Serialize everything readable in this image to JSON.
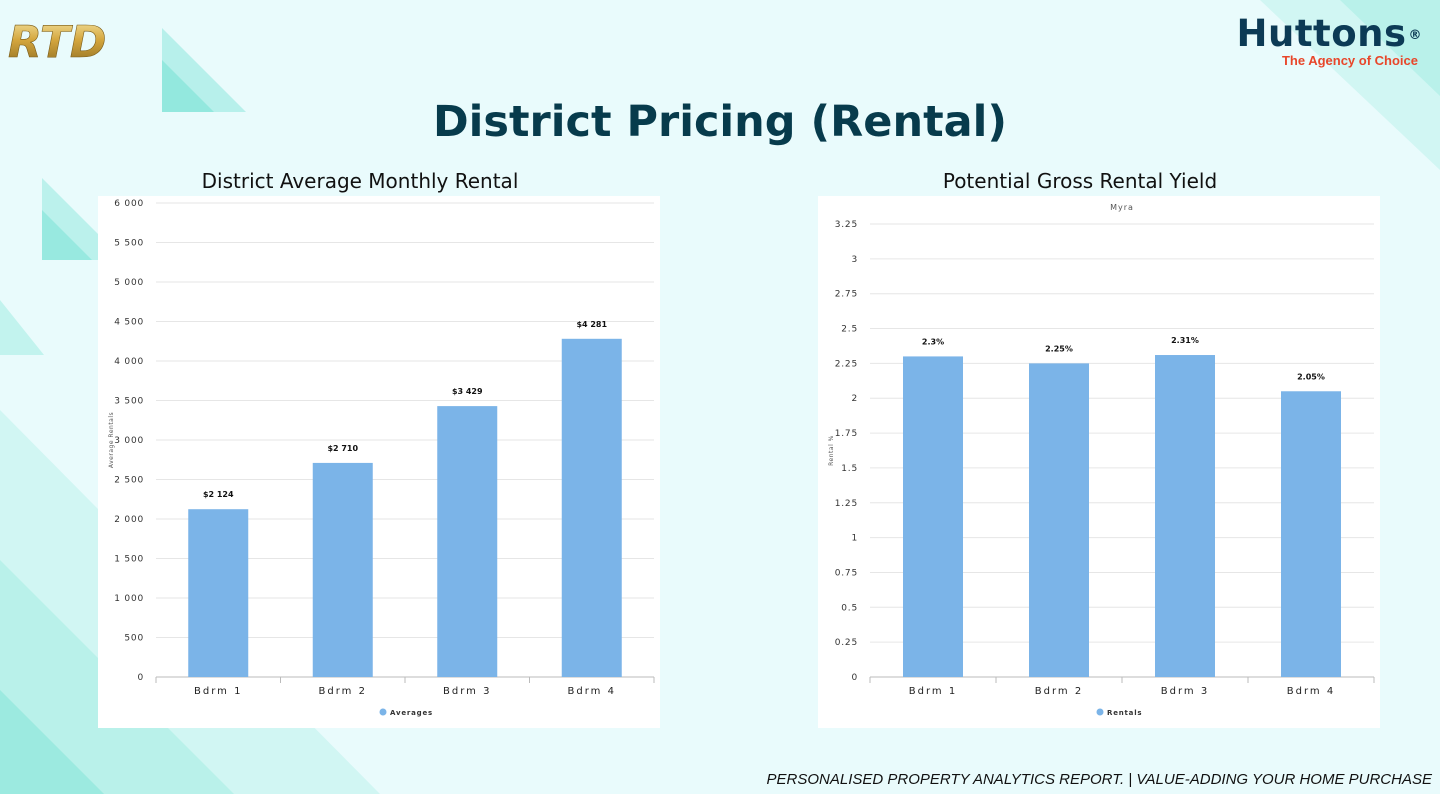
{
  "header": {
    "rtd_logo_text": "RTD",
    "huttons_brand": "Huttons",
    "huttons_reg_mark": "®",
    "huttons_tagline": "The Agency of Choice",
    "page_title": "District Pricing (Rental)"
  },
  "footer": {
    "text": "PERSONALISED PROPERTY ANALYTICS REPORT. | VALUE-ADDING YOUR HOME PURCHASE"
  },
  "colors": {
    "bar": "#7bb4e8",
    "title": "#073b4c",
    "brand_dark": "#0c3a55",
    "brand_accent": "#e8462a",
    "background": "#e9fbfc"
  },
  "chart_data": [
    {
      "type": "bar",
      "heading": "District Average Monthly Rental",
      "title": "",
      "ylabel": "Average Rentals",
      "xlabel": "",
      "categories": [
        "Bdrm 1",
        "Bdrm 2",
        "Bdrm 3",
        "Bdrm 4"
      ],
      "series": [
        {
          "name": "Averages",
          "values": [
            2124,
            2710,
            3429,
            4281
          ],
          "labels": [
            "$2 124",
            "$2 710",
            "$3 429",
            "$4 281"
          ]
        }
      ],
      "ylim": [
        0,
        6000
      ],
      "yticks": [
        0,
        500,
        1000,
        1500,
        2000,
        2500,
        3000,
        3500,
        4000,
        4500,
        5000,
        5500,
        6000
      ],
      "ytick_labels": [
        "0",
        "500",
        "1 000",
        "1 500",
        "2 000",
        "2 500",
        "3 000",
        "3 500",
        "4 000",
        "4 500",
        "5 000",
        "5 500",
        "6 000"
      ],
      "grid": true,
      "legend": "bottom-center"
    },
    {
      "type": "bar",
      "heading": "Potential Gross Rental Yield",
      "title": "Myra",
      "ylabel": "Rental %",
      "xlabel": "",
      "categories": [
        "Bdrm 1",
        "Bdrm 2",
        "Bdrm 3",
        "Bdrm 4"
      ],
      "series": [
        {
          "name": "Rentals",
          "values": [
            2.3,
            2.25,
            2.31,
            2.05
          ],
          "labels": [
            "2.3%",
            "2.25%",
            "2.31%",
            "2.05%"
          ]
        }
      ],
      "ylim": [
        0,
        3.25
      ],
      "yticks": [
        0,
        0.25,
        0.5,
        0.75,
        1,
        1.25,
        1.5,
        1.75,
        2,
        2.25,
        2.5,
        2.75,
        3,
        3.25
      ],
      "ytick_labels": [
        "0",
        "0.25",
        "0.5",
        "0.75",
        "1",
        "1.25",
        "1.5",
        "1.75",
        "2",
        "2.25",
        "2.5",
        "2.75",
        "3",
        "3.25"
      ],
      "grid": true,
      "legend": "bottom-center"
    }
  ]
}
